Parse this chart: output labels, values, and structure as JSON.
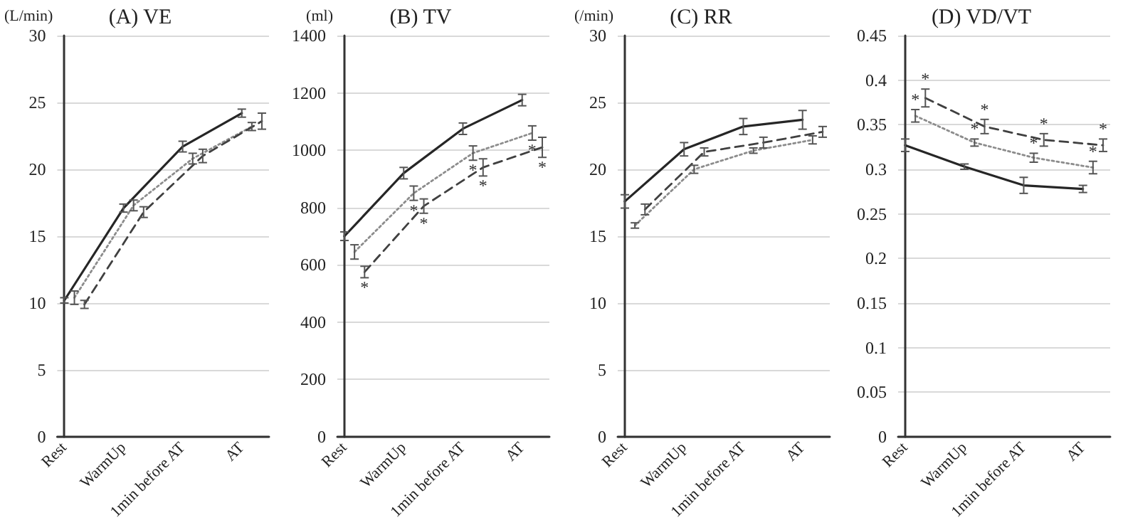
{
  "chart_data": [
    {
      "type": "line",
      "title": "(A) VE",
      "ylabel": "(L/min)",
      "categories": [
        "Rest",
        "WarmUp",
        "1min before AT",
        "AT"
      ],
      "ylim": [
        0,
        30
      ],
      "yticks": [
        0,
        5,
        10,
        15,
        20,
        25,
        30
      ],
      "grid": "y",
      "marker": "none",
      "series": [
        {
          "color": "#262626",
          "line_style": "solid",
          "values": [
            10.2,
            17.1,
            21.7,
            24.2
          ],
          "errors": [
            0.2,
            0.3,
            0.4,
            0.3
          ]
        },
        {
          "color": "#8c8c8c",
          "line_style": "dotted",
          "values": [
            10.4,
            17.3,
            20.8,
            23.2
          ],
          "errors": [
            0.5,
            0.4,
            0.4,
            0.3
          ]
        },
        {
          "color": "#404040",
          "line_style": "dashed",
          "values": [
            9.9,
            16.8,
            21.0,
            23.6
          ],
          "errors": [
            0.3,
            0.4,
            0.5,
            0.6
          ]
        }
      ]
    },
    {
      "type": "line",
      "title": "(B) TV",
      "ylabel": "(ml)",
      "categories": [
        "Rest",
        "WarmUp",
        "1min before AT",
        "AT"
      ],
      "ylim": [
        0,
        1400
      ],
      "yticks": [
        0,
        200,
        400,
        600,
        800,
        1000,
        1200,
        1400
      ],
      "grid": "y",
      "marker": "none",
      "series": [
        {
          "color": "#262626",
          "line_style": "solid",
          "values": [
            700,
            920,
            1075,
            1175
          ],
          "errors": [
            15,
            20,
            20,
            20
          ]
        },
        {
          "color": "#8c8c8c",
          "line_style": "dotted",
          "values": [
            645,
            850,
            990,
            1060
          ],
          "errors": [
            25,
            25,
            25,
            25
          ],
          "value_labels": [
            null,
            "*",
            "*",
            "*"
          ]
        },
        {
          "color": "#404040",
          "line_style": "dashed",
          "values": [
            575,
            805,
            940,
            1010
          ],
          "errors": [
            20,
            25,
            30,
            35
          ],
          "value_labels": [
            "*",
            "*",
            "*",
            "*"
          ]
        }
      ]
    },
    {
      "type": "line",
      "title": "(C) RR",
      "ylabel": "(/min)",
      "categories": [
        "Rest",
        "WarmUp",
        "1min before AT",
        "AT"
      ],
      "ylim": [
        0,
        30
      ],
      "yticks": [
        0,
        5,
        10,
        15,
        20,
        25,
        30
      ],
      "grid": "y",
      "marker": "none",
      "series": [
        {
          "color": "#262626",
          "line_style": "solid",
          "values": [
            17.6,
            21.5,
            23.2,
            23.7
          ],
          "errors": [
            0.5,
            0.5,
            0.6,
            0.7
          ]
        },
        {
          "color": "#8c8c8c",
          "line_style": "dotted",
          "values": [
            15.8,
            20.0,
            21.4,
            22.2
          ],
          "errors": [
            0.2,
            0.3,
            0.2,
            0.3
          ]
        },
        {
          "color": "#404040",
          "line_style": "dashed",
          "values": [
            17.0,
            21.3,
            22.0,
            22.8
          ],
          "errors": [
            0.4,
            0.3,
            0.4,
            0.4
          ]
        }
      ]
    },
    {
      "type": "line",
      "title": "(D) VD/VT",
      "categories": [
        "Rest",
        "WarmUp",
        "1min before AT",
        "AT"
      ],
      "ylim": [
        0,
        0.45
      ],
      "yticks": [
        0,
        0.05,
        0.1,
        0.15,
        0.2,
        0.25,
        0.3,
        0.35,
        0.4,
        0.45
      ],
      "grid": "y",
      "marker": "none",
      "series": [
        {
          "color": "#262626",
          "line_style": "solid",
          "values": [
            0.327,
            0.303,
            0.282,
            0.278
          ],
          "errors": [
            0.007,
            0.003,
            0.009,
            0.004
          ]
        },
        {
          "color": "#8c8c8c",
          "line_style": "dotted",
          "values": [
            0.36,
            0.33,
            0.313,
            0.302
          ],
          "errors": [
            0.007,
            0.004,
            0.005,
            0.007
          ],
          "value_labels": [
            "*",
            "*",
            "*",
            "*"
          ]
        },
        {
          "color": "#404040",
          "line_style": "dashed",
          "values": [
            0.38,
            0.348,
            0.333,
            0.327
          ],
          "errors": [
            0.01,
            0.008,
            0.007,
            0.007
          ],
          "value_labels": [
            "*",
            "*",
            "*",
            "*"
          ]
        }
      ]
    }
  ]
}
